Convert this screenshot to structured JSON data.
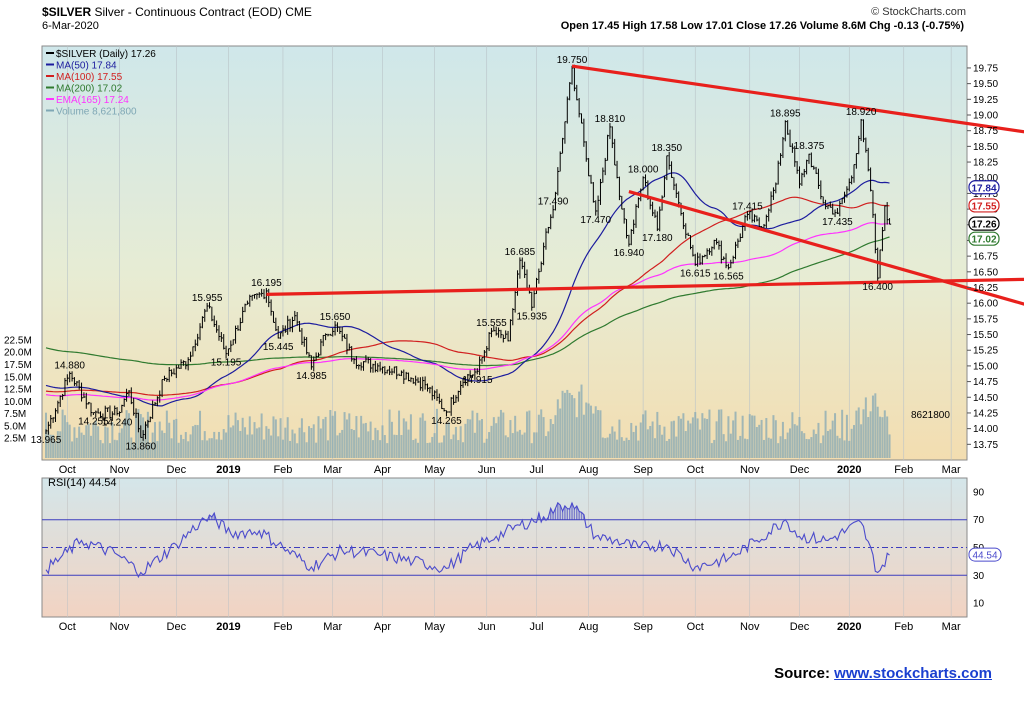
{
  "header": {
    "symbol": "$SILVER",
    "name": "Silver - Continuous Contract (EOD)",
    "exchange": "CME",
    "date": "6-Mar-2020",
    "brand": "© StockCharts.com",
    "quote": "Open 17.45  High 17.58  Low 17.01  Close 17.26  Volume 8.6M  Chg -0.13 (-0.75%)"
  },
  "source": {
    "label": "Source:",
    "link": "www.stockcharts.com"
  },
  "chart_data": [
    {
      "type": "line",
      "title": "$SILVER (Daily) 17.26",
      "legend": [
        {
          "label": "$SILVER (Daily) 17.26",
          "color": "#000000"
        },
        {
          "label": "MA(50) 17.84",
          "color": "#1c1c9e"
        },
        {
          "label": "MA(100) 17.55",
          "color": "#d11f1f"
        },
        {
          "label": "MA(200) 17.02",
          "color": "#2f7a2f"
        },
        {
          "label": "EMA(165) 17.24",
          "color": "#ff33ff"
        },
        {
          "label": "Volume 8,621,800",
          "color": "#7fa7b5"
        }
      ],
      "legend_position": "top-left",
      "ylim": [
        13.5,
        20.1
      ],
      "y_ticks": [
        13.75,
        14.0,
        14.25,
        14.5,
        14.75,
        15.0,
        15.25,
        15.5,
        15.75,
        16.0,
        16.25,
        16.5,
        16.75,
        17.0,
        17.25,
        17.5,
        17.75,
        18.0,
        18.25,
        18.5,
        18.75,
        19.0,
        19.25,
        19.5,
        19.75
      ],
      "volume_ticks": [
        "2.5M",
        "5.0M",
        "7.5M",
        "10.0M",
        "12.5M",
        "15.0M",
        "17.5M",
        "20.0M",
        "22.5M"
      ],
      "x_labels": [
        {
          "label": "Oct",
          "idx": 9
        },
        {
          "label": "Nov",
          "idx": 31
        },
        {
          "label": "Dec",
          "idx": 55
        },
        {
          "label": "2019",
          "idx": 77
        },
        {
          "label": "Feb",
          "idx": 100
        },
        {
          "label": "Mar",
          "idx": 121
        },
        {
          "label": "Apr",
          "idx": 142
        },
        {
          "label": "May",
          "idx": 164
        },
        {
          "label": "Jun",
          "idx": 186
        },
        {
          "label": "Jul",
          "idx": 207
        },
        {
          "label": "Aug",
          "idx": 229
        },
        {
          "label": "Sep",
          "idx": 252
        },
        {
          "label": "Oct",
          "idx": 274
        },
        {
          "label": "Nov",
          "idx": 297
        },
        {
          "label": "Dec",
          "idx": 318
        },
        {
          "label": "2020",
          "idx": 339
        },
        {
          "label": "Feb",
          "idx": 362
        },
        {
          "label": "Mar",
          "idx": 382
        }
      ],
      "num_days": 388,
      "price_anchors": [
        [
          0,
          13.965
        ],
        [
          10,
          14.88
        ],
        [
          20,
          14.255
        ],
        [
          30,
          14.24
        ],
        [
          35,
          14.6
        ],
        [
          40,
          13.86
        ],
        [
          50,
          14.8
        ],
        [
          60,
          15.1
        ],
        [
          68,
          15.955
        ],
        [
          76,
          15.195
        ],
        [
          85,
          16.0
        ],
        [
          93,
          16.195
        ],
        [
          98,
          15.445
        ],
        [
          105,
          15.8
        ],
        [
          112,
          14.985
        ],
        [
          118,
          15.5
        ],
        [
          122,
          15.65
        ],
        [
          130,
          15.1
        ],
        [
          140,
          15.0
        ],
        [
          150,
          14.9
        ],
        [
          160,
          14.7
        ],
        [
          169,
          14.265
        ],
        [
          176,
          14.8
        ],
        [
          182,
          14.915
        ],
        [
          188,
          15.555
        ],
        [
          195,
          15.4
        ],
        [
          200,
          16.685
        ],
        [
          205,
          15.935
        ],
        [
          210,
          16.9
        ],
        [
          214,
          17.49
        ],
        [
          222,
          19.75
        ],
        [
          228,
          18.3
        ],
        [
          232,
          17.47
        ],
        [
          238,
          18.81
        ],
        [
          243,
          17.5
        ],
        [
          246,
          16.94
        ],
        [
          252,
          18.0
        ],
        [
          258,
          17.18
        ],
        [
          262,
          18.35
        ],
        [
          267,
          17.6
        ],
        [
          274,
          16.615
        ],
        [
          282,
          17.0
        ],
        [
          288,
          16.565
        ],
        [
          296,
          17.415
        ],
        [
          302,
          17.2
        ],
        [
          308,
          17.9
        ],
        [
          312,
          18.895
        ],
        [
          318,
          17.9
        ],
        [
          322,
          18.375
        ],
        [
          328,
          17.6
        ],
        [
          334,
          17.435
        ],
        [
          340,
          18.0
        ],
        [
          344,
          18.92
        ],
        [
          348,
          17.8
        ],
        [
          351,
          16.4
        ],
        [
          354,
          17.55
        ],
        [
          356,
          17.26
        ]
      ],
      "labels": [
        {
          "text": "13.965",
          "idx": 0,
          "price": 13.965,
          "pos": "below"
        },
        {
          "text": "14.880",
          "idx": 10,
          "price": 14.88,
          "pos": "above"
        },
        {
          "text": "14.255",
          "idx": 20,
          "price": 14.255,
          "pos": "below"
        },
        {
          "text": "14.240",
          "idx": 30,
          "price": 14.24,
          "pos": "below"
        },
        {
          "text": "13.860",
          "idx": 40,
          "price": 13.86,
          "pos": "below"
        },
        {
          "text": "15.955",
          "idx": 68,
          "price": 15.955,
          "pos": "above"
        },
        {
          "text": "15.195",
          "idx": 76,
          "price": 15.195,
          "pos": "below"
        },
        {
          "text": "16.195",
          "idx": 93,
          "price": 16.195,
          "pos": "above"
        },
        {
          "text": "15.445",
          "idx": 98,
          "price": 15.445,
          "pos": "below"
        },
        {
          "text": "15.650",
          "idx": 122,
          "price": 15.65,
          "pos": "above"
        },
        {
          "text": "14.985",
          "idx": 112,
          "price": 14.985,
          "pos": "below"
        },
        {
          "text": "14.265",
          "idx": 169,
          "price": 14.265,
          "pos": "below"
        },
        {
          "text": "14.915",
          "idx": 182,
          "price": 14.915,
          "pos": "below"
        },
        {
          "text": "15.555",
          "idx": 188,
          "price": 15.555,
          "pos": "above"
        },
        {
          "text": "16.685",
          "idx": 200,
          "price": 16.685,
          "pos": "above"
        },
        {
          "text": "15.935",
          "idx": 205,
          "price": 15.935,
          "pos": "below"
        },
        {
          "text": "17.490",
          "idx": 214,
          "price": 17.49,
          "pos": "above"
        },
        {
          "text": "19.750",
          "idx": 222,
          "price": 19.75,
          "pos": "above"
        },
        {
          "text": "17.470",
          "idx": 232,
          "price": 17.47,
          "pos": "below"
        },
        {
          "text": "18.810",
          "idx": 238,
          "price": 18.81,
          "pos": "above"
        },
        {
          "text": "16.940",
          "idx": 246,
          "price": 16.94,
          "pos": "below"
        },
        {
          "text": "18.000",
          "idx": 252,
          "price": 18.0,
          "pos": "above"
        },
        {
          "text": "17.180",
          "idx": 258,
          "price": 17.18,
          "pos": "below"
        },
        {
          "text": "18.350",
          "idx": 262,
          "price": 18.35,
          "pos": "above"
        },
        {
          "text": "16.615",
          "idx": 274,
          "price": 16.615,
          "pos": "below"
        },
        {
          "text": "16.565",
          "idx": 288,
          "price": 16.565,
          "pos": "below"
        },
        {
          "text": "17.415",
          "idx": 296,
          "price": 17.415,
          "pos": "above"
        },
        {
          "text": "18.895",
          "idx": 312,
          "price": 18.895,
          "pos": "above"
        },
        {
          "text": "18.375",
          "idx": 322,
          "price": 18.375,
          "pos": "above"
        },
        {
          "text": "17.435",
          "idx": 334,
          "price": 17.435,
          "pos": "below"
        },
        {
          "text": "18.920",
          "idx": 344,
          "price": 18.92,
          "pos": "above"
        },
        {
          "text": "16.400",
          "idx": 351,
          "price": 16.4,
          "pos": "below"
        }
      ],
      "ma_badges": [
        {
          "text": "17.84",
          "price": 17.84,
          "color": "#1c1c9e"
        },
        {
          "text": "17.55",
          "price": 17.55,
          "color": "#d11f1f"
        },
        {
          "text": "17.26",
          "price": 17.26,
          "color": "#000000"
        },
        {
          "text": "17.02",
          "price": 17.02,
          "color": "#2f7a2f"
        }
      ],
      "volume_last_label": "8621800",
      "trendlines": [
        {
          "from": [
            222,
            19.78
          ],
          "to": [
            388,
            18.73
          ],
          "color": "#e8201c"
        },
        {
          "from": [
            93,
            16.14
          ],
          "to": [
            388,
            16.38
          ],
          "color": "#e8201c"
        },
        {
          "from": [
            246,
            17.78
          ],
          "to": [
            388,
            15.98
          ],
          "color": "#e8201c"
        }
      ]
    },
    {
      "type": "line",
      "title": "RSI(14) 44.54",
      "ylim": [
        0,
        100
      ],
      "y_ticks": [
        10,
        30,
        50,
        70,
        90
      ],
      "last_value": "44.54",
      "values_anchor": [
        [
          0,
          34
        ],
        [
          15,
          55
        ],
        [
          30,
          45
        ],
        [
          40,
          32
        ],
        [
          55,
          52
        ],
        [
          65,
          68
        ],
        [
          70,
          72
        ],
        [
          78,
          60
        ],
        [
          90,
          62
        ],
        [
          100,
          50
        ],
        [
          112,
          36
        ],
        [
          125,
          48
        ],
        [
          140,
          45
        ],
        [
          155,
          40
        ],
        [
          169,
          35
        ],
        [
          180,
          50
        ],
        [
          190,
          58
        ],
        [
          200,
          66
        ],
        [
          210,
          72
        ],
        [
          215,
          78
        ],
        [
          222,
          82
        ],
        [
          232,
          58
        ],
        [
          240,
          55
        ],
        [
          250,
          50
        ],
        [
          262,
          52
        ],
        [
          274,
          36
        ],
        [
          288,
          42
        ],
        [
          300,
          55
        ],
        [
          312,
          70
        ],
        [
          318,
          58
        ],
        [
          330,
          55
        ],
        [
          344,
          68
        ],
        [
          351,
          32
        ],
        [
          356,
          44.54
        ]
      ]
    }
  ]
}
